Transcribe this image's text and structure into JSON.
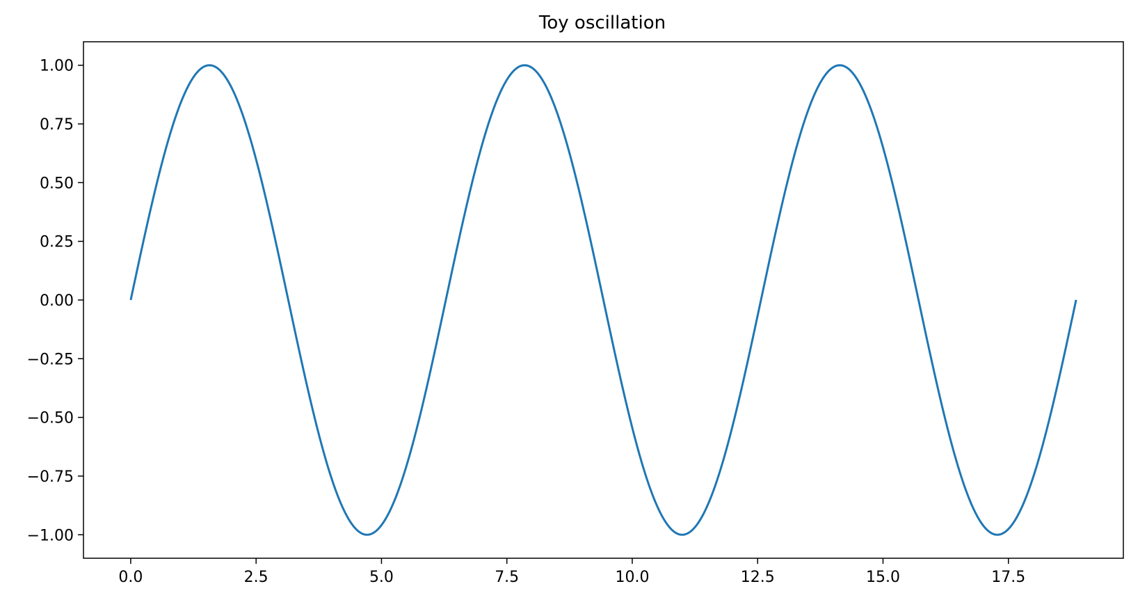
{
  "chart_data": {
    "type": "line",
    "title": "Toy oscillation",
    "xlabel": "",
    "ylabel": "",
    "xlim": [
      -0.942,
      19.792
    ],
    "ylim": [
      -1.1,
      1.1
    ],
    "x_ticks": [
      0.0,
      2.5,
      5.0,
      7.5,
      10.0,
      12.5,
      15.0,
      17.5
    ],
    "x_tick_labels": [
      "0.0",
      "2.5",
      "5.0",
      "7.5",
      "10.0",
      "12.5",
      "15.0",
      "17.5"
    ],
    "y_ticks": [
      1.0,
      0.75,
      0.5,
      0.25,
      0.0,
      -0.25,
      -0.5,
      -0.75,
      -1.0
    ],
    "y_tick_labels": [
      "1.00",
      "0.75",
      "0.50",
      "0.25",
      "0.00",
      "−0.25",
      "−0.50",
      "−0.75",
      "−1.00"
    ],
    "grid": false,
    "legend": "none",
    "series": [
      {
        "color": "#1f77b4",
        "function": "sin(x)",
        "x_range": [
          0,
          18.85
        ],
        "x": [
          0,
          0.785,
          1.571,
          2.356,
          3.142,
          3.927,
          4.712,
          5.498,
          6.283,
          7.069,
          7.854,
          8.639,
          9.425,
          10.21,
          10.996,
          11.781,
          12.566,
          13.352,
          14.137,
          14.923,
          15.708,
          16.493,
          17.279,
          18.064,
          18.85
        ],
        "values": [
          0.0,
          0.71,
          1.0,
          0.71,
          0.0,
          -0.71,
          -1.0,
          -0.71,
          0.0,
          0.71,
          1.0,
          0.71,
          0.0,
          -0.71,
          -1.0,
          -0.71,
          0.0,
          0.71,
          1.0,
          0.71,
          0.0,
          -0.71,
          -1.0,
          -0.71,
          0.0
        ]
      }
    ]
  }
}
